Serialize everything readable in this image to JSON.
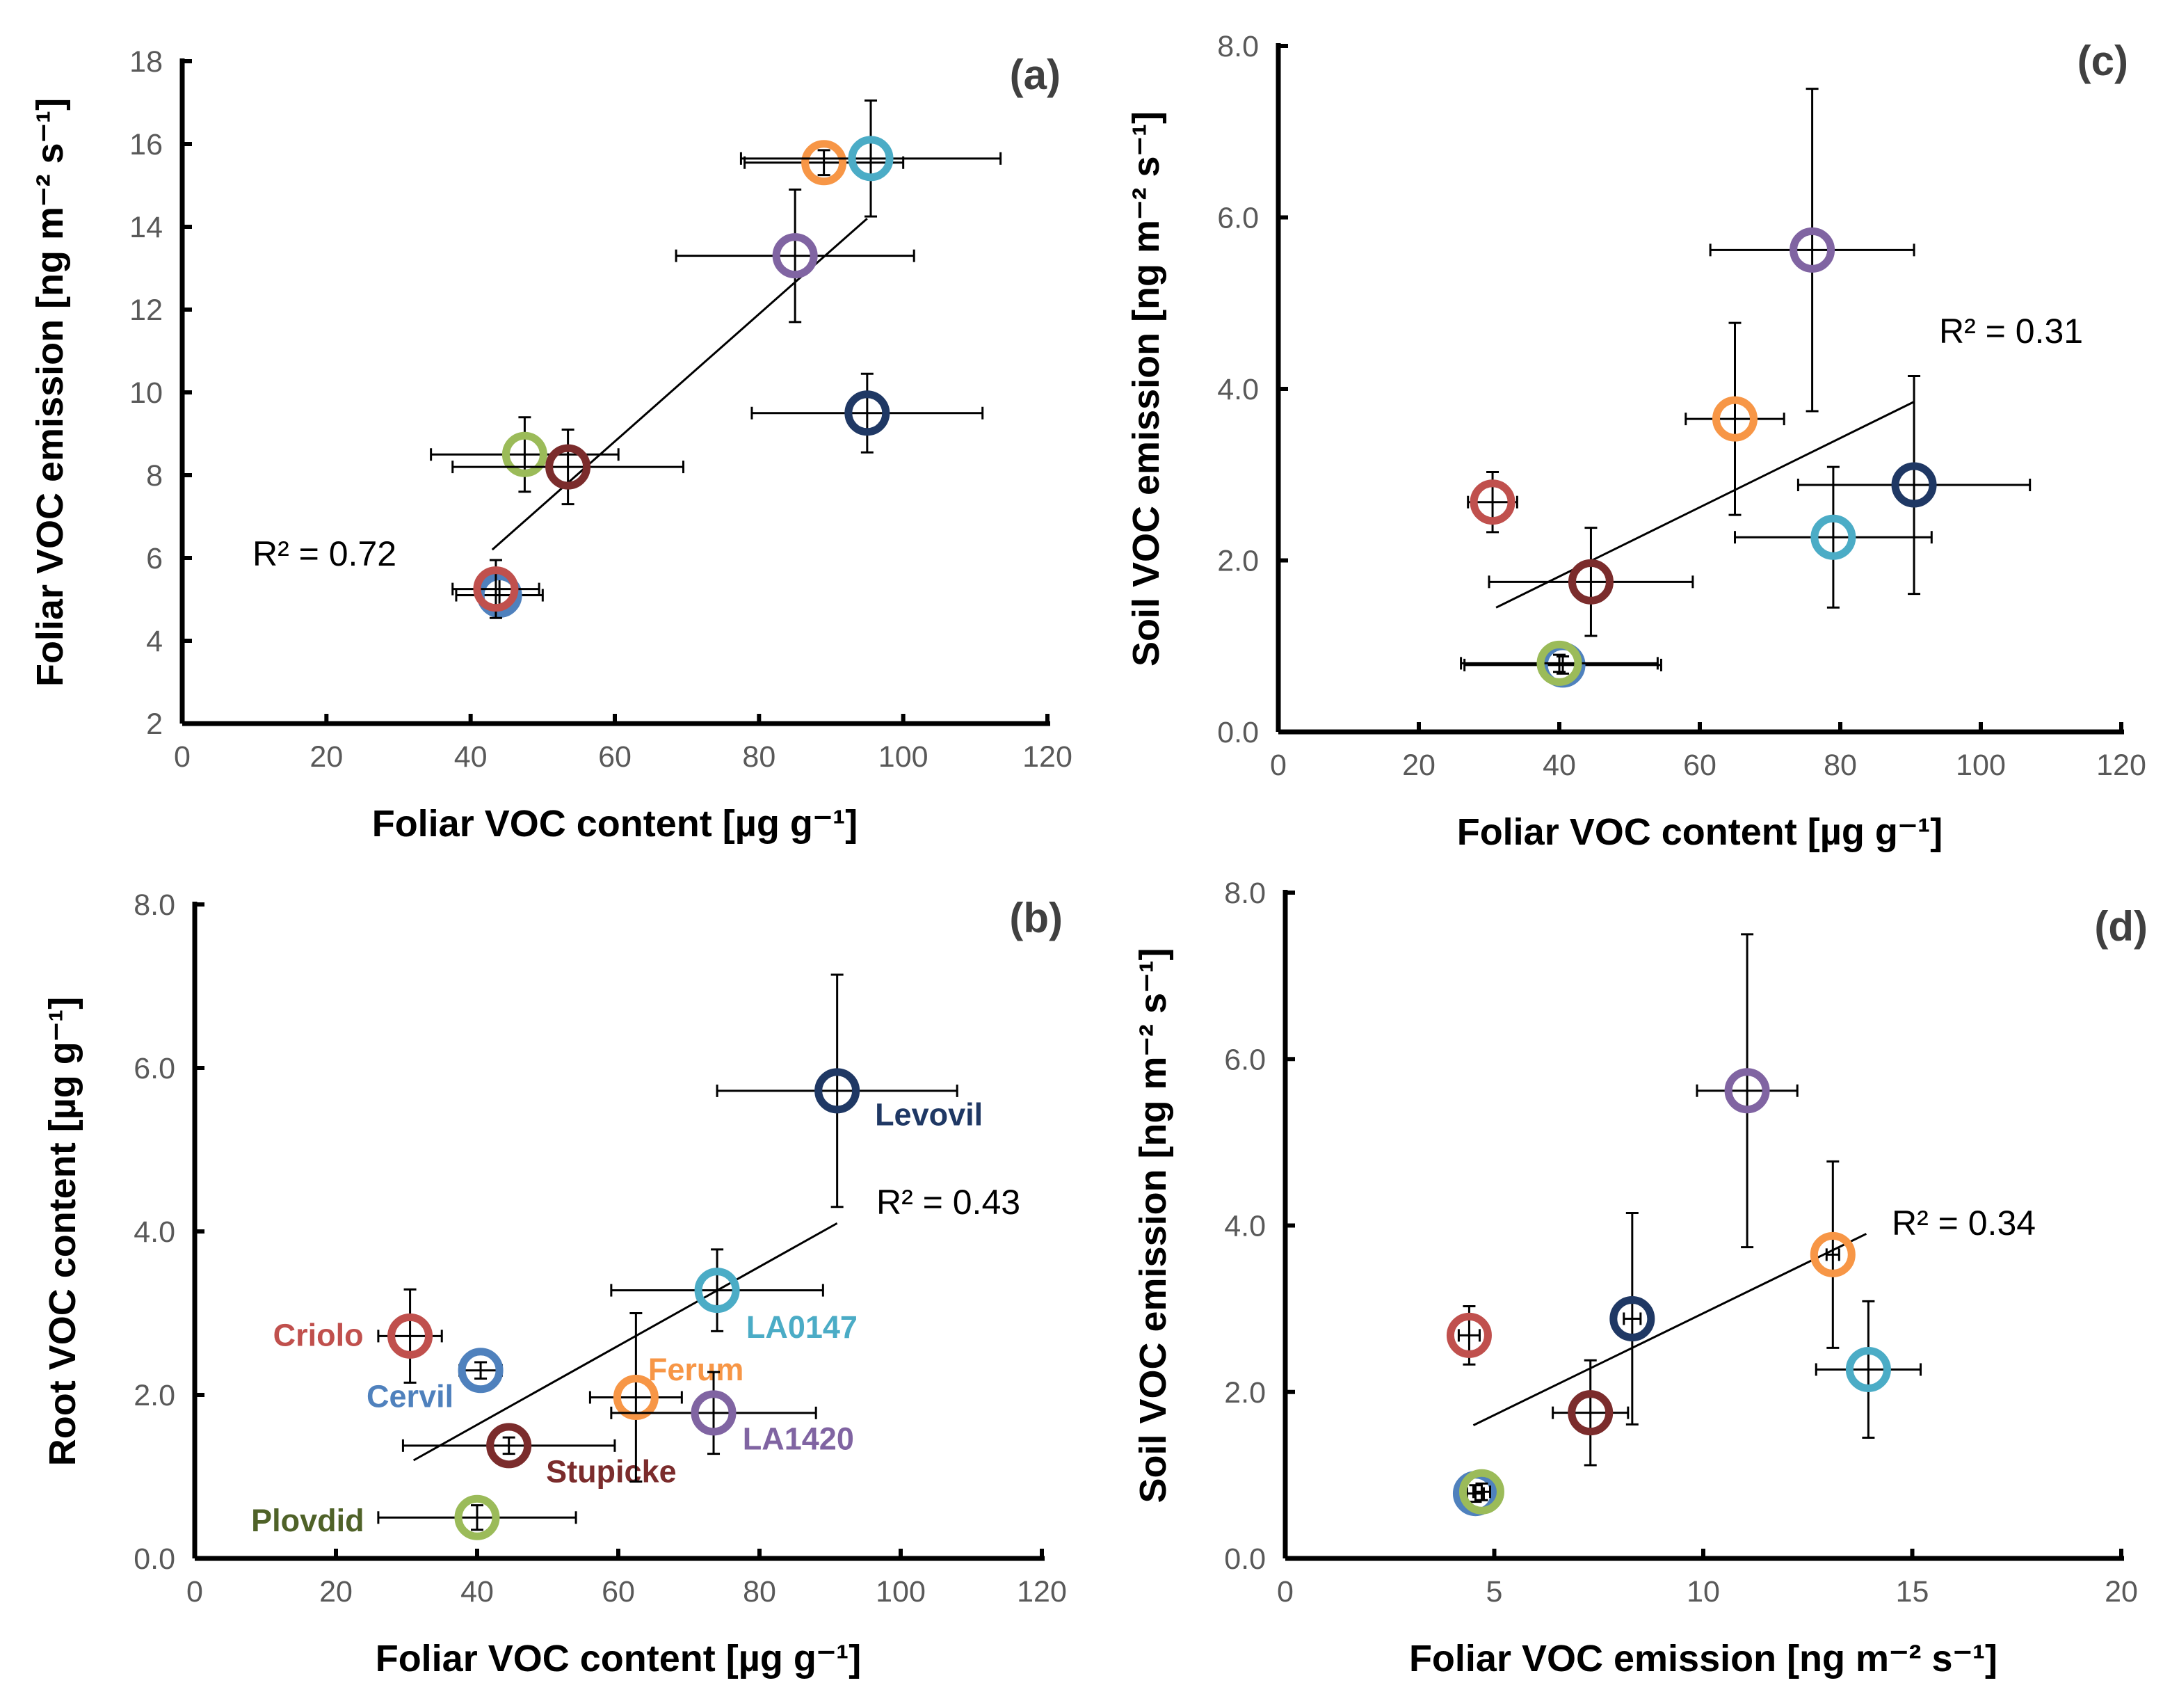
{
  "colors": {
    "Levovil": "#1F3864",
    "LA0147": "#4BACC6",
    "Ferum": "#F79646",
    "LA1420": "#8064A2",
    "Criolo": "#C0504D",
    "Cervil": "#4F81BD",
    "Stupicke": "#7B2C2C",
    "Plovdid": "#9BBB59",
    "PlovdidLabel": "#4F6228"
  },
  "chart_data": [
    {
      "id": "a",
      "type": "scatter",
      "panel_label": "(a)",
      "xlabel": "Foliar VOC content [µg g⁻¹]",
      "ylabel": "Foliar VOC emission [ng m⁻² s⁻¹]",
      "xlim": [
        0,
        120
      ],
      "ylim": [
        2,
        18
      ],
      "xticks": [
        "0",
        "20",
        "40",
        "60",
        "80",
        "100",
        "120"
      ],
      "yticks": [
        "2",
        "4",
        "6",
        "8",
        "10",
        "12",
        "14",
        "16",
        "18"
      ],
      "r2": "R² = 0.72",
      "fit": [
        [
          43,
          6.2
        ],
        [
          95,
          14.2
        ]
      ],
      "points": [
        {
          "name": "Plovdid",
          "x": 47.5,
          "y": 8.5,
          "xerr": 13,
          "yerr": 0.9
        },
        {
          "name": "Stupicke",
          "x": 53.5,
          "y": 8.2,
          "xerr": 16,
          "yerr": 0.9
        },
        {
          "name": "Cervil",
          "x": 44,
          "y": 5.1,
          "xerr": 6,
          "yerr": 0.5
        },
        {
          "name": "Criolo",
          "x": 43.5,
          "y": 5.25,
          "xerr": 6,
          "yerr": 0.7
        },
        {
          "name": "LA1420",
          "x": 85,
          "y": 13.3,
          "xerr": 16.5,
          "yerr": 1.6
        },
        {
          "name": "Ferum",
          "x": 89,
          "y": 15.55,
          "xerr": 11,
          "yerr": 0.3
        },
        {
          "name": "LA0147",
          "x": 95.5,
          "y": 15.65,
          "xerr": 18,
          "yerr": 1.4
        },
        {
          "name": "Levovil",
          "x": 95,
          "y": 9.5,
          "xerr": 16,
          "yerr": 0.95
        }
      ]
    },
    {
      "id": "c",
      "type": "scatter",
      "panel_label": "(c)",
      "xlabel": "Foliar VOC content [µg g⁻¹]",
      "ylabel": "Soil VOC emission [ng m⁻² s⁻¹]",
      "xlim": [
        0,
        120
      ],
      "ylim": [
        0,
        8
      ],
      "xticks": [
        "0",
        "20",
        "40",
        "60",
        "80",
        "100",
        "120"
      ],
      "yticks": [
        "0.0",
        "2.0",
        "4.0",
        "6.0",
        "8.0"
      ],
      "r2": "R² = 0.31",
      "fit": [
        [
          31,
          1.45
        ],
        [
          90.5,
          3.85
        ]
      ],
      "points": [
        {
          "name": "Criolo",
          "x": 30.5,
          "y": 2.68,
          "xerr": 3.5,
          "yerr": 0.35
        },
        {
          "name": "Cervil",
          "x": 40.5,
          "y": 0.78,
          "xerr": 14,
          "yerr": 0.1
        },
        {
          "name": "Plovdid",
          "x": 40,
          "y": 0.8,
          "xerr": 14,
          "yerr": 0.1
        },
        {
          "name": "Stupicke",
          "x": 44.5,
          "y": 1.75,
          "xerr": 14.5,
          "yerr": 0.63
        },
        {
          "name": "Ferum",
          "x": 65,
          "y": 3.65,
          "xerr": 7,
          "yerr": 1.12
        },
        {
          "name": "LA1420",
          "x": 76,
          "y": 5.62,
          "xerr": 14.5,
          "yerr": 1.88
        },
        {
          "name": "LA0147",
          "x": 79,
          "y": 2.27,
          "xerr": 14,
          "yerr": 0.82
        },
        {
          "name": "Levovil",
          "x": 90.5,
          "y": 2.88,
          "xerr": 16.5,
          "yerr": 1.27
        }
      ]
    },
    {
      "id": "b",
      "type": "scatter",
      "panel_label": "(b)",
      "xlabel": "Foliar VOC content [µg g⁻¹]",
      "ylabel": "Root VOC content [µg g⁻¹]",
      "xlim": [
        0,
        120
      ],
      "ylim": [
        0,
        8
      ],
      "xticks": [
        "0",
        "20",
        "40",
        "60",
        "80",
        "100",
        "120"
      ],
      "yticks": [
        "0.0",
        "2.0",
        "4.0",
        "6.0",
        "8.0"
      ],
      "r2": "R² = 0.43",
      "fit": [
        [
          31,
          1.2
        ],
        [
          91,
          4.1
        ]
      ],
      "points": [
        {
          "name": "Criolo",
          "x": 30.5,
          "y": 2.72,
          "xerr": 4.5,
          "yerr": 0.57,
          "label": "Criolo",
          "lx": 17.5,
          "ly": 2.6,
          "anchor": "middle"
        },
        {
          "name": "Cervil",
          "x": 40.5,
          "y": 2.3,
          "xerr": 3,
          "yerr": 0.1,
          "label": "Cervil",
          "lx": 30.5,
          "ly": 1.85,
          "anchor": "middle"
        },
        {
          "name": "Plovdid",
          "x": 40,
          "y": 0.5,
          "xerr": 14,
          "yerr": 0.15,
          "label": "Plovdid",
          "lx": 16,
          "ly": 0.33,
          "anchor": "middle",
          "labelColorKey": "PlovdidLabel"
        },
        {
          "name": "Stupicke",
          "x": 44.5,
          "y": 1.38,
          "xerr": 15,
          "yerr": 0.1,
          "label": "Stupicke",
          "lx": 59,
          "ly": 0.93,
          "anchor": "middle"
        },
        {
          "name": "Ferum",
          "x": 62.5,
          "y": 1.97,
          "xerr": 6.5,
          "yerr": 1.03,
          "label": "Ferum",
          "lx": 71,
          "ly": 2.18,
          "anchor": "middle"
        },
        {
          "name": "LA1420",
          "x": 73.5,
          "y": 1.78,
          "xerr": 14.5,
          "yerr": 0.5,
          "label": "LA1420",
          "lx": 85.5,
          "ly": 1.33,
          "anchor": "middle"
        },
        {
          "name": "LA0147",
          "x": 74,
          "y": 3.28,
          "xerr": 15,
          "yerr": 0.5,
          "label": "LA0147",
          "lx": 86,
          "ly": 2.7,
          "anchor": "middle"
        },
        {
          "name": "Levovil",
          "x": 91,
          "y": 5.72,
          "xerr": 17,
          "yerr": 1.42,
          "label": "Levovil",
          "lx": 104,
          "ly": 5.3,
          "anchor": "middle"
        }
      ]
    },
    {
      "id": "d",
      "type": "scatter",
      "panel_label": "(d)",
      "xlabel": "Foliar VOC emission [ng m⁻² s⁻¹]",
      "ylabel": "Soil VOC emission [ng m⁻² s⁻¹]",
      "xlim": [
        0,
        20
      ],
      "ylim": [
        0,
        8
      ],
      "xticks": [
        "0",
        "5",
        "10",
        "15",
        "20"
      ],
      "yticks": [
        "0.0",
        "2.0",
        "4.0",
        "6.0",
        "8.0"
      ],
      "r2": "R² = 0.34",
      "fit": [
        [
          4.5,
          1.6
        ],
        [
          13.9,
          3.9
        ]
      ],
      "points": [
        {
          "name": "Criolo",
          "x": 4.4,
          "y": 2.68,
          "xerr": 0.25,
          "yerr": 0.35
        },
        {
          "name": "Cervil",
          "x": 4.55,
          "y": 0.78,
          "xerr": 0.2,
          "yerr": 0.1
        },
        {
          "name": "Plovdid",
          "x": 4.7,
          "y": 0.8,
          "xerr": 0.2,
          "yerr": 0.1
        },
        {
          "name": "Stupicke",
          "x": 7.3,
          "y": 1.75,
          "xerr": 0.9,
          "yerr": 0.63
        },
        {
          "name": "Levovil",
          "x": 8.3,
          "y": 2.88,
          "xerr": 0.2,
          "yerr": 1.27
        },
        {
          "name": "LA1420",
          "x": 11.05,
          "y": 5.62,
          "xerr": 1.2,
          "yerr": 1.88
        },
        {
          "name": "Ferum",
          "x": 13.1,
          "y": 3.65,
          "xerr": 0.15,
          "yerr": 1.12
        },
        {
          "name": "LA0147",
          "x": 13.95,
          "y": 2.27,
          "xerr": 1.25,
          "yerr": 0.82
        }
      ]
    }
  ]
}
